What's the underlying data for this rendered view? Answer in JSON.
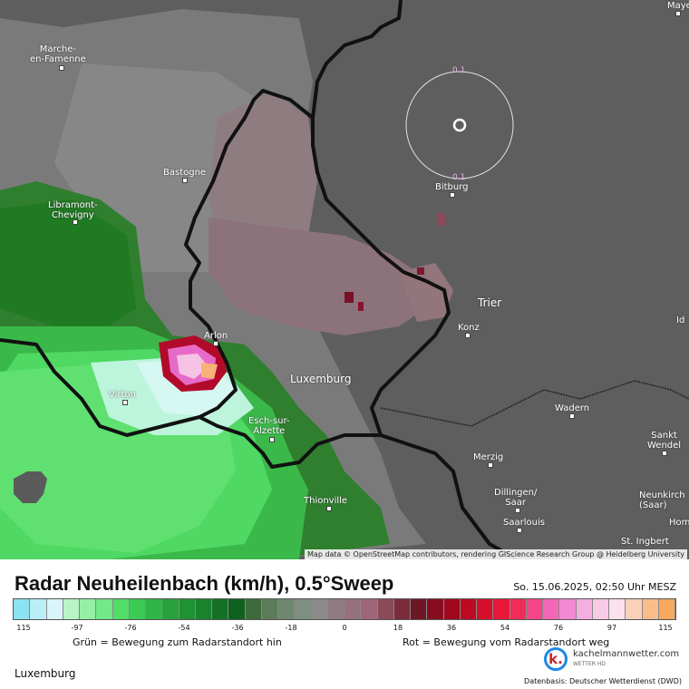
{
  "map": {
    "attribution": "Map data © OpenStreetMap contributors, rendering GIScience Research Group @ Heidelberg University",
    "ring_labels": [
      "0.1",
      "0.1"
    ],
    "places": [
      {
        "name": "Marche-\nen-Famenne",
        "big": false
      },
      {
        "name": "Bastogne",
        "big": false
      },
      {
        "name": "Libramont-\nChevigny",
        "big": false
      },
      {
        "name": "Arlon",
        "big": false
      },
      {
        "name": "Virton",
        "big": false
      },
      {
        "name": "Luxemburg",
        "big": true
      },
      {
        "name": "Esch-sur-\nAlzette",
        "big": false
      },
      {
        "name": "Thionville",
        "big": false
      },
      {
        "name": "Bitburg",
        "big": false
      },
      {
        "name": "Trier",
        "big": true
      },
      {
        "name": "Konz",
        "big": false
      },
      {
        "name": "Wadern",
        "big": false
      },
      {
        "name": "Merzig",
        "big": false
      },
      {
        "name": "Dillingen/\nSaar",
        "big": false
      },
      {
        "name": "Saarlouis",
        "big": false
      },
      {
        "name": "Sankt\nWendel",
        "big": false
      },
      {
        "name": "Neunkirch\n(Saar)",
        "big": false
      },
      {
        "name": "Hom",
        "big": false
      },
      {
        "name": "St. Ingbert",
        "big": false
      },
      {
        "name": "Maye",
        "big": false
      },
      {
        "name": "Id",
        "big": false
      }
    ]
  },
  "panel": {
    "title": "Radar Neuheilenbach (km/h), 0.5°Sweep",
    "datetime": "So. 15.06.2025, 02:50 Uhr MESZ",
    "ticks": [
      "115",
      "-97",
      "-76",
      "-54",
      "-36",
      "-18",
      "0",
      "18",
      "36",
      "54",
      "76",
      "97",
      "115"
    ],
    "legend_green": "Grün = Bewegung zum Radarstandort hin",
    "legend_red": "Rot = Bewegung vom Radarstandort weg",
    "region": "Luxemburg",
    "logo_name": "kachelmannwetter.com",
    "logo_sub": "WETTER HD",
    "logo_mark": "k.",
    "source": "Datenbasis: Deutscher Wetterdienst (DWD)"
  },
  "colors": {
    "scale": [
      "#8be3f2",
      "#b9eef6",
      "#d9f5fa",
      "#b8f5c4",
      "#95f0a6",
      "#72e888",
      "#52dd6a",
      "#3cc954",
      "#2fb547",
      "#27a33c",
      "#1f9233",
      "#1a822c",
      "#137125",
      "#0d621e",
      "#3d6b3d",
      "#5b7b5b",
      "#6e866e",
      "#7f8f7f",
      "#8a8a8a",
      "#8f7a80",
      "#977080",
      "#9e6676",
      "#8b4a58",
      "#7a2b3c",
      "#6e1526",
      "#860d20",
      "#a0081e",
      "#bb0a22",
      "#d40f2a",
      "#e8183a",
      "#f02d58",
      "#f5448a",
      "#f565b8",
      "#f18ad2",
      "#f4aee0",
      "#f7cbe8",
      "#fbe0ee",
      "#fbd0b8",
      "#f9bd8c",
      "#f6a95f"
    ]
  }
}
